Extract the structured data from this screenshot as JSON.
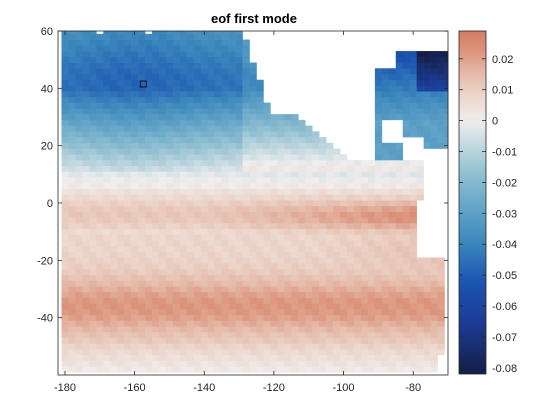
{
  "chart_data": {
    "type": "heatmap",
    "title": "eof first mode",
    "xlabel": "",
    "ylabel": "",
    "xlim": [
      -182,
      -70
    ],
    "ylim": [
      -60,
      60
    ],
    "x_ticks": [
      -180,
      -160,
      -140,
      -120,
      -100,
      -80
    ],
    "y_ticks": [
      -40,
      -20,
      0,
      20,
      40,
      60
    ],
    "colorbar": {
      "limits": [
        -0.082,
        0.029
      ],
      "ticks": [
        0.02,
        0.01,
        0,
        -0.01,
        -0.02,
        -0.03,
        -0.04,
        -0.05,
        -0.06,
        -0.07,
        -0.08
      ],
      "tick_labels": [
        "0.02",
        "0.01",
        "0",
        "-0.01",
        "-0.02",
        "-0.03",
        "-0.04",
        "-0.05",
        "-0.06",
        "-0.07",
        "-0.08"
      ],
      "colors": {
        "low": "#141e46",
        "mid_low": "#1b55b2",
        "mid": "#3a86bc",
        "light": "#8ec0d3",
        "zero": "#f0eeec",
        "pos_light": "#e5bfae",
        "high": "#d9886c"
      }
    },
    "marker": {
      "lon": -157.5,
      "lat": 41.5
    },
    "grid": false,
    "legend": "colorbar-right"
  }
}
